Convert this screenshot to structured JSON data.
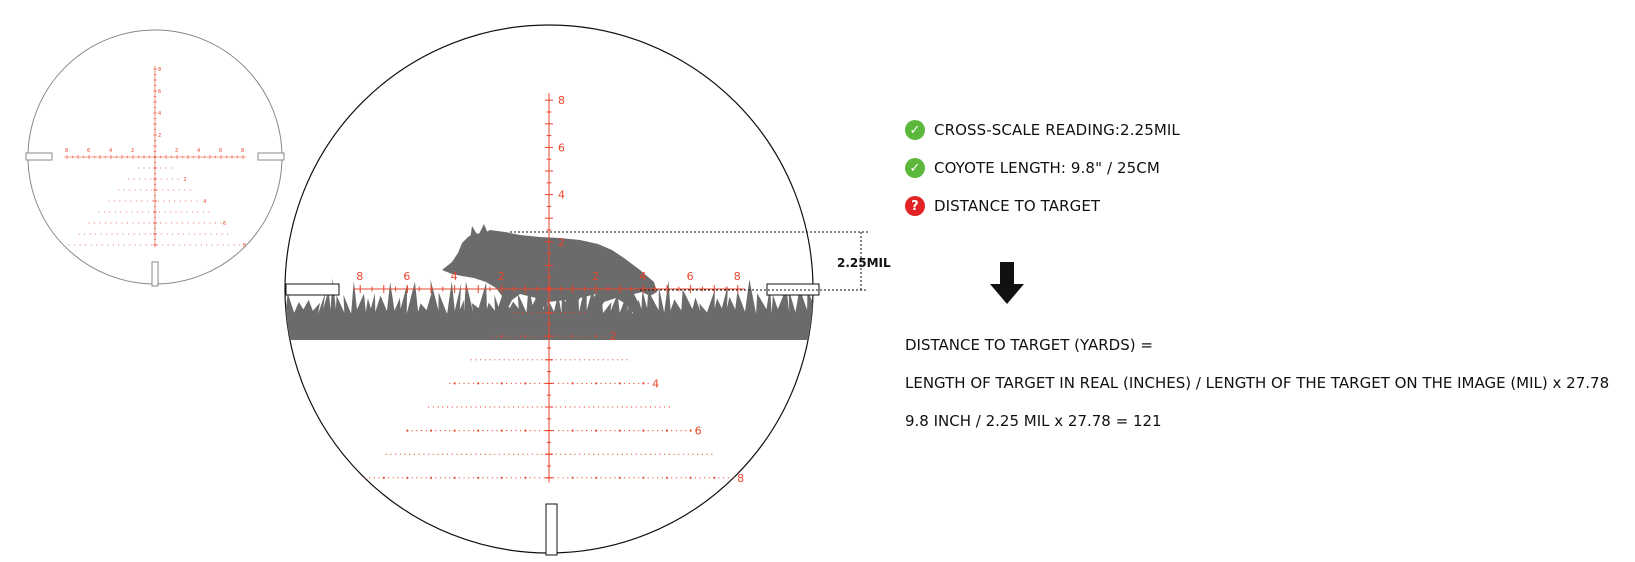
{
  "reticle": {
    "vertical_labels": [
      "8",
      "6",
      "4",
      "2"
    ],
    "horizontal_labels_left": [
      "8",
      "6",
      "4",
      "2"
    ],
    "horizontal_labels_right": [
      "2",
      "4",
      "6",
      "8"
    ],
    "lower_labels": [
      "2",
      "4",
      "6",
      "8"
    ],
    "measurement_label": "2.25MIL",
    "reticle_color": "#e8452c",
    "silhouette_color": "#6b6b6b"
  },
  "checklist": [
    {
      "status": "ok",
      "icon": "check-icon",
      "text": "CROSS-SCALE READING:2.25MIL"
    },
    {
      "status": "ok",
      "icon": "check-icon",
      "text": "COYOTE LENGTH: 9.8\" / 25CM"
    },
    {
      "status": "unknown",
      "icon": "question-icon",
      "text": "DISTANCE TO TARGET"
    }
  ],
  "formula": {
    "line1": "DISTANCE TO TARGET (YARDS) =",
    "line2": "LENGTH OF TARGET IN REAL (INCHES) / LENGTH OF THE TARGET ON THE IMAGE (MIL) x 27.78",
    "line3": "9.8 INCH / 2.25 MIL x 27.78 = 121"
  },
  "colors": {
    "ok": "#5cb83a",
    "question": "#e32224",
    "text": "#111111"
  }
}
